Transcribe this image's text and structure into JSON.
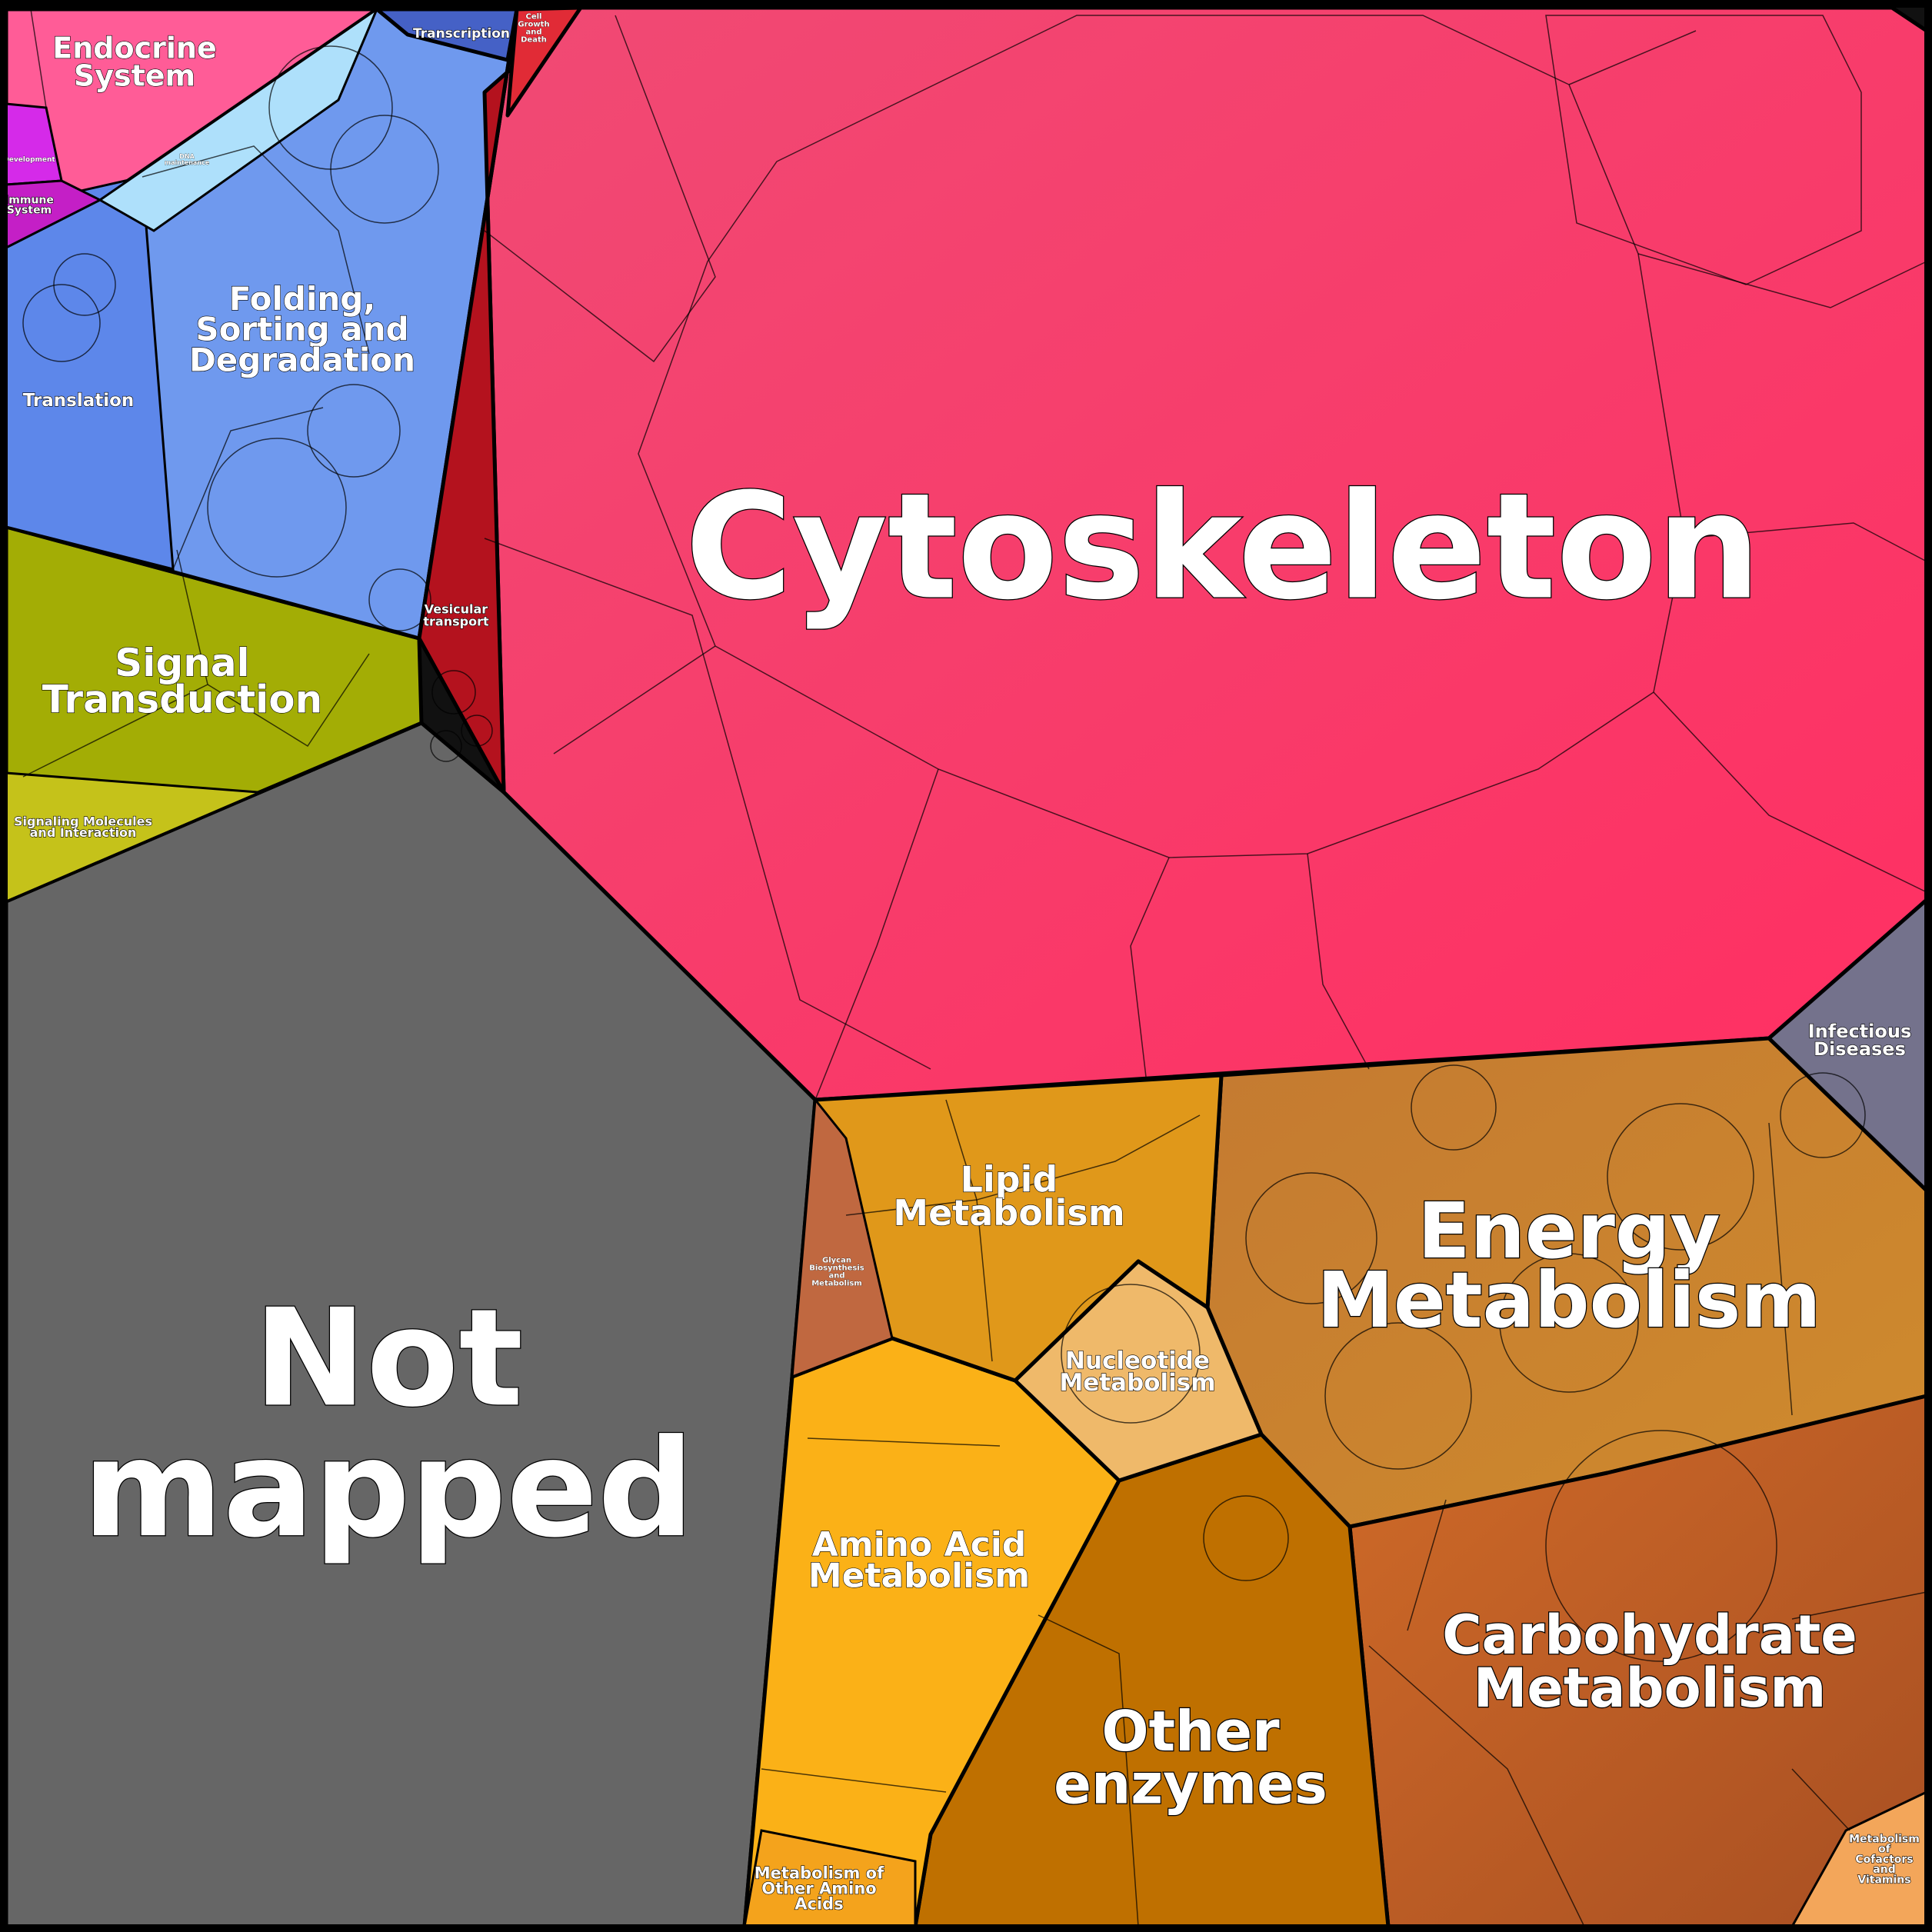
{
  "categories": [
    {
      "id": "cytoskeleton",
      "label": "Cytoskeleton",
      "color": "#ff3d6a",
      "font": 190
    },
    {
      "id": "not-mapped",
      "label": "Not mapped",
      "color": "#666666",
      "font": 175
    },
    {
      "id": "energy",
      "label": "Energy Metabolism",
      "color": "#c7812f",
      "font": 100
    },
    {
      "id": "carbohydrate",
      "label": "Carbohydrate Metabolism",
      "color": "#c9642a",
      "font": 70
    },
    {
      "id": "other-enzymes",
      "label": "Other enzymes",
      "color": "#bf7000",
      "font": 72
    },
    {
      "id": "amino-acid",
      "label": "Amino Acid Metabolism",
      "color": "#fbb117",
      "font": 44
    },
    {
      "id": "lipid",
      "label": "Lipid Metabolism",
      "color": "#e0981a",
      "font": 46
    },
    {
      "id": "nucleotide",
      "label": "Nucleotide Metabolism",
      "color": "#efb96a",
      "font": 31
    },
    {
      "id": "other-amino",
      "label": "Metabolism of Other Amino Acids",
      "color": "#f4a31c",
      "font": 21
    },
    {
      "id": "glycan",
      "label": "Glycan Biosynthesis and Metabolism",
      "color": "#c06840",
      "font": 10
    },
    {
      "id": "cofactors",
      "label": "Metabolism of Cofactors and Vitamins",
      "color": "#f3a65a",
      "font": 14
    },
    {
      "id": "infectious",
      "label": "Infectious Diseases",
      "color": "#74728c",
      "font": 24
    },
    {
      "id": "signal",
      "label": "Signal Transduction",
      "color": "#a3ad05",
      "font": 50
    },
    {
      "id": "signaling-molecules",
      "label": "Signaling Molecules and Interaction",
      "color": "#c5c21a",
      "font": 16
    },
    {
      "id": "folding",
      "label": "Folding, Sorting and Degradation",
      "color": "#6f99ee",
      "font": 42
    },
    {
      "id": "translation",
      "label": "Translation",
      "color": "#5d87ea",
      "font": 23
    },
    {
      "id": "transcription",
      "label": "Transcription",
      "color": "#4561c6",
      "font": 17
    },
    {
      "id": "dna-maint",
      "label": "DNA maintenance",
      "color": "#aee0fb",
      "font": 8
    },
    {
      "id": "endocrine",
      "label": "Endocrine System",
      "color": "#ff5c97",
      "font": 38
    },
    {
      "id": "development",
      "label": "Development",
      "color": "#d52ae9",
      "font": 9
    },
    {
      "id": "immune",
      "label": "Immune System",
      "color": "#c41fc6",
      "font": 14
    },
    {
      "id": "vesicular",
      "label": "Vesicular transport",
      "color": "#b4121e",
      "font": 16
    },
    {
      "id": "cell-growth",
      "label": "Cell Growth and Death",
      "color": "#e12b36",
      "font": 10
    }
  ]
}
